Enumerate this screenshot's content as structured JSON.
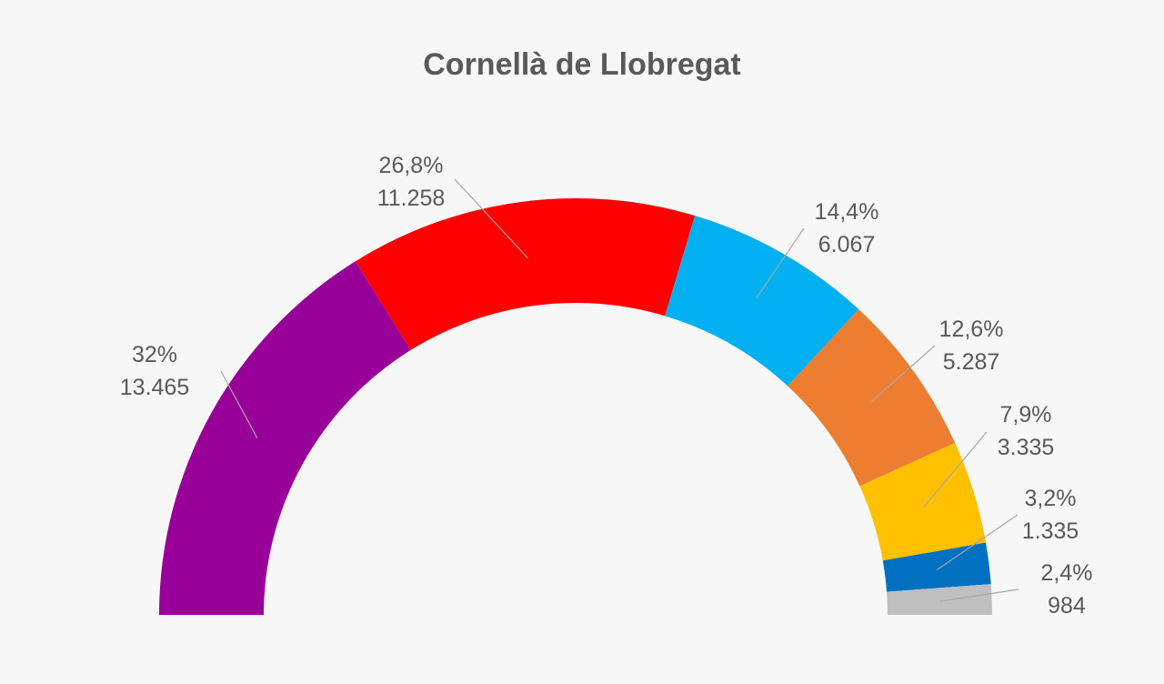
{
  "chart_data": {
    "type": "pie",
    "variant": "half-donut",
    "title": "Cornellà de Llobregat",
    "slices": [
      {
        "percent_label": "32%",
        "value_label": "13.465",
        "value": 13465,
        "color": "#990099"
      },
      {
        "percent_label": "26,8%",
        "value_label": "11.258",
        "value": 11258,
        "color": "#ff0000"
      },
      {
        "percent_label": "14,4%",
        "value_label": "6.067",
        "value": 6067,
        "color": "#00b0f0"
      },
      {
        "percent_label": "12,6%",
        "value_label": "5.287",
        "value": 5287,
        "color": "#ed7d31"
      },
      {
        "percent_label": "7,9%",
        "value_label": "3.335",
        "value": 3335,
        "color": "#ffc000"
      },
      {
        "percent_label": "3,2%",
        "value_label": "1.335",
        "value": 1335,
        "color": "#0070c0"
      },
      {
        "percent_label": "2,4%",
        "value_label": "984",
        "value": 984,
        "color": "#bfbfbf"
      }
    ],
    "legend": "none"
  }
}
